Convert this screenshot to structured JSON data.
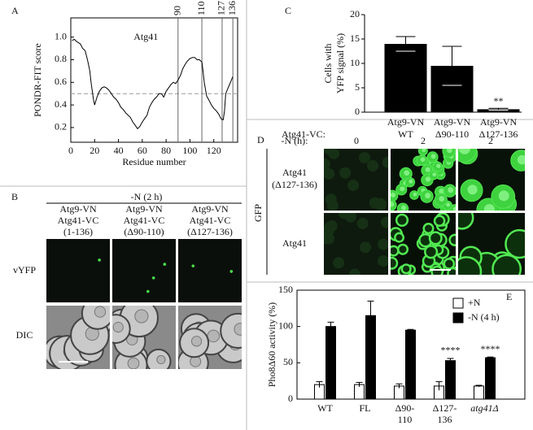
{
  "panel_labels": [
    "A",
    "B",
    "C",
    "D",
    "E"
  ],
  "chart_data": [
    {
      "type": "line",
      "annotation": "Atg41",
      "xlabel": "Residue number",
      "ylabel": "PONDR-FIT score",
      "x": [
        1,
        3,
        5,
        8,
        10,
        12,
        14,
        16,
        17,
        19,
        20,
        22,
        24,
        26,
        28,
        30,
        32,
        34,
        36,
        38,
        40,
        42,
        44,
        46,
        48,
        50,
        52,
        54,
        56,
        58,
        60,
        62,
        64,
        66,
        68,
        70,
        72,
        74,
        76,
        78,
        80,
        82,
        84,
        86,
        88,
        90,
        92,
        94,
        96,
        98,
        100,
        102,
        104,
        106,
        108,
        110,
        111,
        112,
        114,
        116,
        118,
        120,
        122,
        124,
        126,
        127,
        128,
        129,
        130,
        132,
        134,
        136
      ],
      "series": [
        {
          "color": "#000000",
          "values": [
            0.97,
            0.98,
            0.96,
            0.94,
            0.9,
            0.88,
            0.8,
            0.7,
            0.6,
            0.45,
            0.4,
            0.47,
            0.52,
            0.55,
            0.56,
            0.55,
            0.53,
            0.5,
            0.47,
            0.45,
            0.42,
            0.38,
            0.36,
            0.33,
            0.31,
            0.29,
            0.25,
            0.22,
            0.19,
            0.21,
            0.25,
            0.28,
            0.31,
            0.38,
            0.42,
            0.45,
            0.47,
            0.5,
            0.5,
            0.47,
            0.52,
            0.55,
            0.58,
            0.6,
            0.59,
            0.62,
            0.66,
            0.72,
            0.76,
            0.79,
            0.81,
            0.82,
            0.82,
            0.8,
            0.8,
            0.78,
            0.7,
            0.6,
            0.48,
            0.44,
            0.4,
            0.37,
            0.35,
            0.32,
            0.28,
            0.27,
            0.27,
            0.35,
            0.5,
            0.55,
            0.6,
            0.65
          ]
        }
      ],
      "hline": 0.5,
      "vlines": [
        90,
        110,
        127,
        136
      ],
      "xlim": [
        0,
        140
      ],
      "ylim": [
        0.07,
        1.17
      ],
      "xticks": [
        0,
        20,
        40,
        60,
        80,
        100,
        120
      ],
      "yticks": [
        0.2,
        0.4,
        0.6,
        0.8,
        {
          "value": 1,
          "label": "1.0"
        }
      ]
    },
    {
      "type": "bar",
      "ylabel": [
        "Cells with",
        "YFP signal (%)"
      ],
      "category_row_label": "Atg41-VC:",
      "categories": [
        [
          "Atg9-VN",
          "WT"
        ],
        [
          "Atg9-VN",
          "Δ90-110"
        ],
        [
          "Atg9-VN",
          "Δ127-136"
        ]
      ],
      "values": [
        14,
        9.5,
        0.6
      ],
      "errors": [
        1.5,
        4,
        0.2
      ],
      "value_annotations": [
        null,
        null,
        "**"
      ],
      "color": "#000000",
      "ylim": [
        0,
        20
      ],
      "yticks": [
        0,
        5,
        10,
        15,
        20
      ]
    },
    {
      "type": "grouped_bar",
      "ylabel": "Pho8Δ60 activity (%)",
      "categories": [
        [
          "WT"
        ],
        [
          "FL"
        ],
        [
          "Δ90-",
          "110"
        ],
        [
          "Δ127-",
          "136"
        ],
        [
          "atg41Δ"
        ]
      ],
      "series": [
        {
          "name": "+N",
          "color": "#ffffff",
          "values": [
            20,
            20,
            18,
            18,
            18
          ],
          "errors": [
            4,
            3,
            3,
            6,
            1
          ]
        },
        {
          "name": "-N (4 h)",
          "color": "#000000",
          "values": [
            100,
            115,
            95,
            53,
            57
          ],
          "errors": [
            6,
            20,
            1,
            3,
            1
          ]
        }
      ],
      "value_annotations": [
        null,
        null,
        null,
        "****",
        "****"
      ],
      "legend": "upper right",
      "ylim": [
        0,
        150
      ],
      "yticks": [
        0,
        50,
        100,
        150
      ]
    }
  ],
  "panel_b": {
    "condition": "-N (2 h)",
    "columns": [
      [
        "Atg9-VN",
        "Atg41-VC",
        "(1-136)"
      ],
      [
        "Atg9-VN",
        "Atg41-VC",
        "(Δ90-110)"
      ],
      [
        "Atg9-VN",
        "Atg41-VC",
        "(Δ127-136)"
      ]
    ],
    "rows": [
      "vYFP",
      "DIC"
    ]
  },
  "panel_d": {
    "time_label": "-N (h):",
    "times": [
      "0",
      "2",
      "2"
    ],
    "stain": "GFP",
    "rows": [
      [
        "Atg41",
        "(Δ127-136)"
      ],
      [
        "Atg41"
      ]
    ]
  }
}
